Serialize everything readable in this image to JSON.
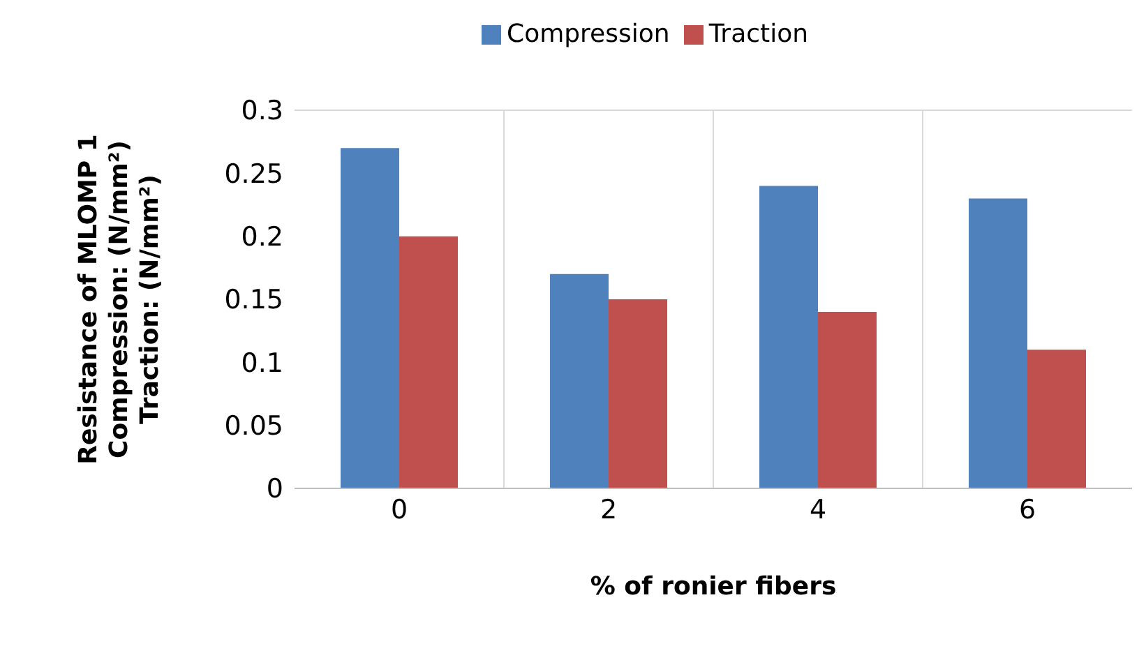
{
  "chart_data": {
    "type": "bar",
    "xlabel": "% of ronier fibers",
    "ylabel": "Resistance of MLOMP 1\nCompression: (N/mm²)\nTraction: (N/mm²)",
    "categories": [
      "0",
      "2",
      "4",
      "6"
    ],
    "series": [
      {
        "name": "Compression",
        "color": "#4f81bd",
        "values": [
          0.27,
          0.17,
          0.24,
          0.23
        ]
      },
      {
        "name": "Traction",
        "color": "#c0504d",
        "values": [
          0.2,
          0.15,
          0.14,
          0.11
        ]
      }
    ],
    "ylim": [
      0,
      0.3
    ],
    "yticks": [
      0,
      0.05,
      0.1,
      0.15,
      0.2,
      0.25,
      0.3
    ],
    "grid": true,
    "legend": "top"
  }
}
